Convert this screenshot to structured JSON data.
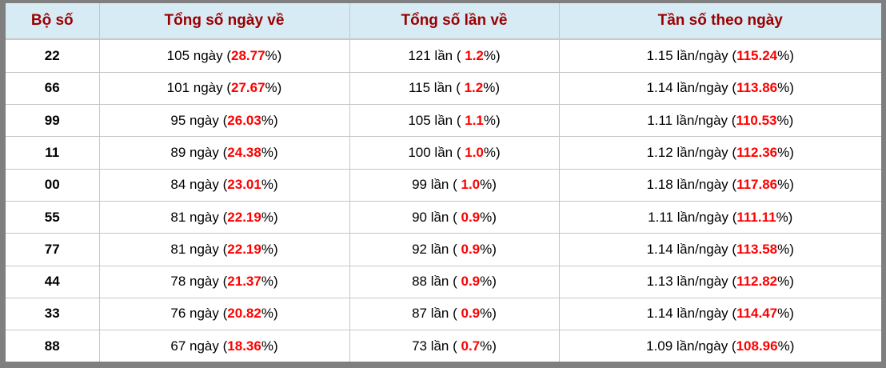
{
  "table": {
    "headers": [
      "Bộ số",
      "Tổng số ngày về",
      "Tổng số lần về",
      "Tần số theo ngày"
    ],
    "rows": [
      {
        "pair": "22",
        "days_prefix": "105 ngày (",
        "days_value": "28.77",
        "days_suffix": "%)",
        "times_prefix": "121 lần ( ",
        "times_value": "1.2",
        "times_suffix": "%)",
        "freq_prefix": "1.15 lần/ngày (",
        "freq_value": "115.24",
        "freq_suffix": "%)"
      },
      {
        "pair": "66",
        "days_prefix": "101 ngày (",
        "days_value": "27.67",
        "days_suffix": "%)",
        "times_prefix": "115 lần ( ",
        "times_value": "1.2",
        "times_suffix": "%)",
        "freq_prefix": "1.14 lần/ngày (",
        "freq_value": "113.86",
        "freq_suffix": "%)"
      },
      {
        "pair": "99",
        "days_prefix": "95 ngày (",
        "days_value": "26.03",
        "days_suffix": "%)",
        "times_prefix": "105 lần ( ",
        "times_value": "1.1",
        "times_suffix": "%)",
        "freq_prefix": "1.11 lần/ngày (",
        "freq_value": "110.53",
        "freq_suffix": "%)"
      },
      {
        "pair": "11",
        "days_prefix": "89 ngày (",
        "days_value": "24.38",
        "days_suffix": "%)",
        "times_prefix": "100 lần ( ",
        "times_value": "1.0",
        "times_suffix": "%)",
        "freq_prefix": "1.12 lần/ngày (",
        "freq_value": "112.36",
        "freq_suffix": "%)"
      },
      {
        "pair": "00",
        "days_prefix": "84 ngày (",
        "days_value": "23.01",
        "days_suffix": "%)",
        "times_prefix": "99 lần ( ",
        "times_value": "1.0",
        "times_suffix": "%)",
        "freq_prefix": "1.18 lần/ngày (",
        "freq_value": "117.86",
        "freq_suffix": "%)"
      },
      {
        "pair": "55",
        "days_prefix": "81 ngày (",
        "days_value": "22.19",
        "days_suffix": "%)",
        "times_prefix": "90 lần ( ",
        "times_value": "0.9",
        "times_suffix": "%)",
        "freq_prefix": "1.11 lần/ngày (",
        "freq_value": "111.11",
        "freq_suffix": "%)"
      },
      {
        "pair": "77",
        "days_prefix": "81 ngày (",
        "days_value": "22.19",
        "days_suffix": "%)",
        "times_prefix": "92 lần ( ",
        "times_value": "0.9",
        "times_suffix": "%)",
        "freq_prefix": "1.14 lần/ngày (",
        "freq_value": "113.58",
        "freq_suffix": "%)"
      },
      {
        "pair": "44",
        "days_prefix": "78 ngày (",
        "days_value": "21.37",
        "days_suffix": "%)",
        "times_prefix": "88 lần ( ",
        "times_value": "0.9",
        "times_suffix": "%)",
        "freq_prefix": "1.13 lần/ngày (",
        "freq_value": "112.82",
        "freq_suffix": "%)"
      },
      {
        "pair": "33",
        "days_prefix": "76 ngày (",
        "days_value": "20.82",
        "days_suffix": "%)",
        "times_prefix": "87 lần ( ",
        "times_value": "0.9",
        "times_suffix": "%)",
        "freq_prefix": "1.14 lần/ngày (",
        "freq_value": "114.47",
        "freq_suffix": "%)"
      },
      {
        "pair": "88",
        "days_prefix": "67 ngày (",
        "days_value": "18.36",
        "days_suffix": "%)",
        "times_prefix": "73 lần ( ",
        "times_value": "0.7",
        "times_suffix": "%)",
        "freq_prefix": "1.09 lần/ngày (",
        "freq_value": "108.96",
        "freq_suffix": "%)"
      }
    ]
  },
  "colors": {
    "header_background": "#d7ebf5",
    "header_text": "#9b0000",
    "value_highlight": "#ff0000",
    "outer_border": "#7f7f7f",
    "cell_border": "#c6c6c6"
  }
}
